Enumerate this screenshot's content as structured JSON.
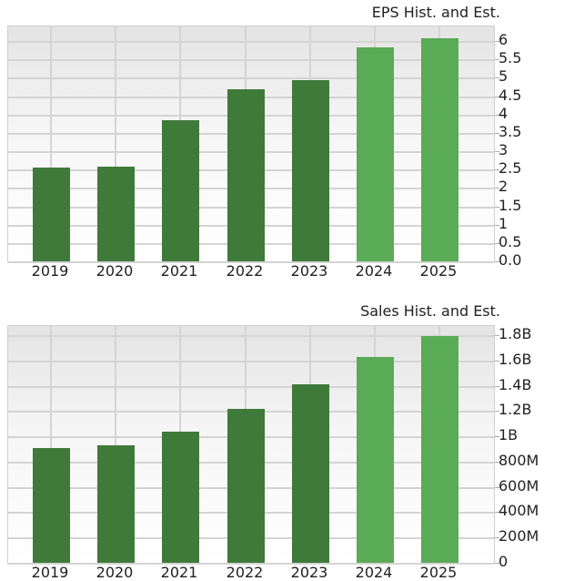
{
  "chart_data": [
    {
      "type": "bar",
      "title": "EPS Hist. and Est.",
      "categories": [
        "2019",
        "2020",
        "2021",
        "2022",
        "2023",
        "2024",
        "2025"
      ],
      "values": [
        2.55,
        2.57,
        3.85,
        4.69,
        4.94,
        5.83,
        6.08
      ],
      "series_kind": [
        "hist",
        "hist",
        "hist",
        "hist",
        "hist",
        "est",
        "est"
      ],
      "yticks": [
        "0.0",
        "0.5",
        "1",
        "1.5",
        "2",
        "2.5",
        "3",
        "3.5",
        "4",
        "4.5",
        "5",
        "5.5",
        "6"
      ],
      "ylim": [
        0,
        6.3
      ],
      "xlabel": "",
      "ylabel": "",
      "grid": true,
      "colors": {
        "hist": "#3f7a3a",
        "est": "#5aab55"
      }
    },
    {
      "type": "bar",
      "title": "Sales Hist. and Est.",
      "categories": [
        "2019",
        "2020",
        "2021",
        "2022",
        "2023",
        "2024",
        "2025"
      ],
      "values": [
        910000000,
        930000000,
        1040000000,
        1220000000,
        1410000000,
        1630000000,
        1790000000
      ],
      "series_kind": [
        "hist",
        "hist",
        "hist",
        "hist",
        "hist",
        "est",
        "est"
      ],
      "yticks": [
        "0",
        "200M",
        "400M",
        "600M",
        "800M",
        "1B",
        "1.2B",
        "1.4B",
        "1.6B",
        "1.8B"
      ],
      "ylim": [
        0,
        1900000000
      ],
      "xlabel": "",
      "ylabel": "",
      "grid": true,
      "colors": {
        "hist": "#3f7a3a",
        "est": "#5aab55"
      }
    }
  ]
}
